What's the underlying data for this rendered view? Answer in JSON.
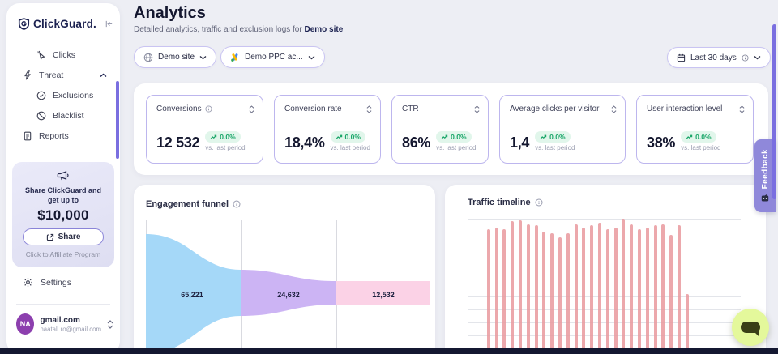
{
  "sidebar": {
    "logo_text": "ClickGuard.",
    "nav": [
      {
        "label": "Clicks",
        "icon": "clicks-icon"
      },
      {
        "label": "Threat",
        "icon": "threat-icon",
        "expanded": true
      },
      {
        "label": "Exclusions",
        "icon": "exclusions-icon"
      },
      {
        "label": "Blacklist",
        "icon": "blacklist-icon"
      },
      {
        "label": "Reports",
        "icon": "reports-icon"
      }
    ],
    "promo": {
      "line1": "Share ClickGuard and",
      "line2": "get up to",
      "amount": "$10,000",
      "share_label": "Share",
      "caption": "Click to Affiliate Program"
    },
    "settings_label": "Settings",
    "account": {
      "initials": "NA",
      "name": "gmail.com",
      "email": "naatali.ro@gmail.com"
    }
  },
  "header": {
    "title": "Analytics",
    "subtitle": "Detailed analytics, traffic and exclusion logs for",
    "subtitle_site": "Demo site",
    "site_filter": "Demo site",
    "ppc_filter": "Demo PPC ac...",
    "date_filter": "Last 30 days"
  },
  "kpis": [
    {
      "label": "Conversions",
      "value": "12 532",
      "change": "0.0%",
      "sub": "vs. last period",
      "has_info": true
    },
    {
      "label": "Conversion rate",
      "value": "18,4%",
      "change": "0.0%",
      "sub": "vs. last period"
    },
    {
      "label": "CTR",
      "value": "86%",
      "change": "0.0%",
      "sub": "vs. last period"
    },
    {
      "label": "Average clicks per visitor",
      "value": "1,4",
      "change": "0.0%",
      "sub": "vs. last period"
    },
    {
      "label": "User interaction level",
      "value": "38%",
      "change": "0.0%",
      "sub": "vs. last period"
    }
  ],
  "feedback_label": "Feedback",
  "colors": {
    "accent_purple": "#6c5ce7",
    "scrollbar_purple": "#7a6fe0",
    "badge_green": "#17a567",
    "badge_green_bg": "#e1f6eb",
    "feedback_tab": "#8f88da",
    "chat_bubble": "#e4f89b",
    "navy_text": "#14172f"
  },
  "chart_data": [
    {
      "type": "funnel",
      "title": "Engagement funnel",
      "stages": [
        {
          "label": "65,221",
          "value": 65221,
          "color": "#a5d8f8"
        },
        {
          "label": "24,632",
          "value": 24632,
          "color": "#ccb4f4"
        },
        {
          "label": "12,532",
          "value": 12532,
          "color": "#fbd2e6"
        }
      ],
      "layout": "left-to-right tapering funnel with vertical stage dividers"
    },
    {
      "type": "bar",
      "title": "Traffic timeline",
      "color": "#e9999d",
      "note": "axis tick labels cut off at viewport bottom; values are relative visible bar heights 0-1",
      "values": [
        0.024,
        0.92,
        0.93,
        0.92,
        0.98,
        0.99,
        0.96,
        0.95,
        0.9,
        0.89,
        0.86,
        0.89,
        0.96,
        0.93,
        0.95,
        0.97,
        0.92,
        0.93,
        1.0,
        0.96,
        0.92,
        0.93,
        0.95,
        0.96,
        0.88,
        0.95,
        0.43
      ],
      "grid": true
    }
  ]
}
